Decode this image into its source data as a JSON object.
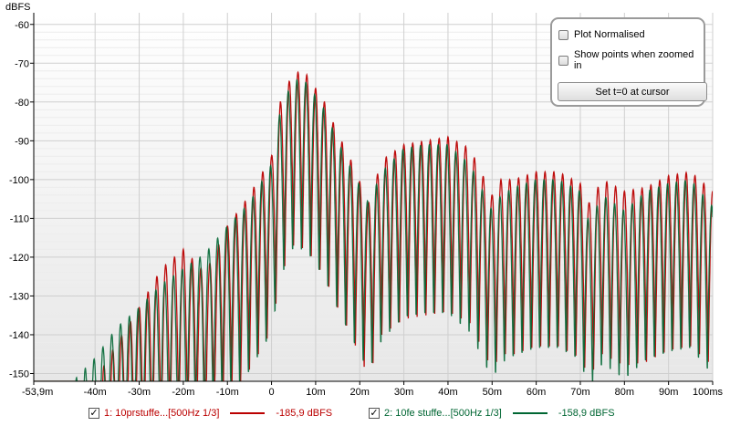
{
  "chart_data": {
    "type": "line",
    "ylabel": "dBFS",
    "xlim": [
      -53.9,
      100
    ],
    "ylim": [
      -152,
      -57
    ],
    "y_ticks": [
      -60,
      -70,
      -80,
      -90,
      -100,
      -110,
      -120,
      -130,
      -140,
      -150
    ],
    "y_tick_labels": [
      "-60",
      "-70",
      "-80",
      "-90",
      "-100",
      "-110",
      "-120",
      "-130",
      "-140",
      "-150"
    ],
    "x_ticks": [
      -53.9,
      -40,
      -30,
      -20,
      -10,
      0,
      10,
      20,
      30,
      40,
      50,
      60,
      70,
      80,
      90,
      100
    ],
    "x_tick_labels": [
      "-53,9m",
      "-40m",
      "-30m",
      "-20m",
      "-10m",
      "0",
      "10m",
      "20m",
      "30m",
      "40m",
      "50m",
      "60m",
      "70m",
      "80m",
      "90m",
      "100ms"
    ],
    "grid": true,
    "series": [
      {
        "name": "1: 10prstuffe...[500Hz 1/3]",
        "color": "#bb0000",
        "x": [
          -53.9,
          -45,
          -40,
          -35,
          -30,
          -25,
          -20,
          -15,
          -10,
          -5,
          0,
          2,
          5,
          8,
          12,
          15,
          18,
          22,
          25,
          30,
          35,
          40,
          45,
          50,
          52,
          55,
          60,
          65,
          70,
          72,
          75,
          80,
          85,
          90,
          95,
          100
        ],
        "y": [
          -152,
          -152,
          -152,
          -142,
          -133,
          -123,
          -118,
          -124,
          -112,
          -104,
          -94,
          -80,
          -72,
          -73,
          -80,
          -88,
          -95,
          -106,
          -95,
          -91,
          -90,
          -89,
          -92,
          -104,
          -100,
          -100,
          -98,
          -98,
          -101,
          -106,
          -100,
          -103,
          -102,
          -99,
          -98,
          -103
        ]
      },
      {
        "name": "2: 10fe stuffe...[500Hz 1/3]",
        "color": "#006633",
        "x": [
          -53.9,
          -45,
          -40,
          -35,
          -30,
          -25,
          -20,
          -15,
          -10,
          -5,
          0,
          2,
          5,
          8,
          12,
          15,
          18,
          22,
          25,
          30,
          35,
          40,
          45,
          50,
          52,
          55,
          60,
          65,
          70,
          72,
          75,
          80,
          85,
          90,
          95,
          100
        ],
        "y": [
          -152,
          -152,
          -146,
          -138,
          -133,
          -127,
          -123,
          -119,
          -112,
          -106,
          -96,
          -82,
          -74,
          -75,
          -82,
          -90,
          -97,
          -106,
          -98,
          -92,
          -91,
          -91,
          -96,
          -108,
          -104,
          -102,
          -100,
          -100,
          -103,
          -111,
          -104,
          -108,
          -103,
          -101,
          -100,
          -107
        ]
      }
    ]
  },
  "panel": {
    "plot_normalised_label": "Plot Normalised",
    "show_points_label": "Show points when zoomed in",
    "set_t0_label": "Set t=0 at cursor"
  },
  "legend": {
    "items": [
      {
        "label": "1: 10prstuffe...[500Hz 1/3]",
        "value": "-185,9 dBFS",
        "color": "#bb0000",
        "checked": true
      },
      {
        "label": "2: 10fe stuffe...[500Hz 1/3]",
        "value": "-158,9 dBFS",
        "color": "#006633",
        "checked": true
      }
    ]
  }
}
